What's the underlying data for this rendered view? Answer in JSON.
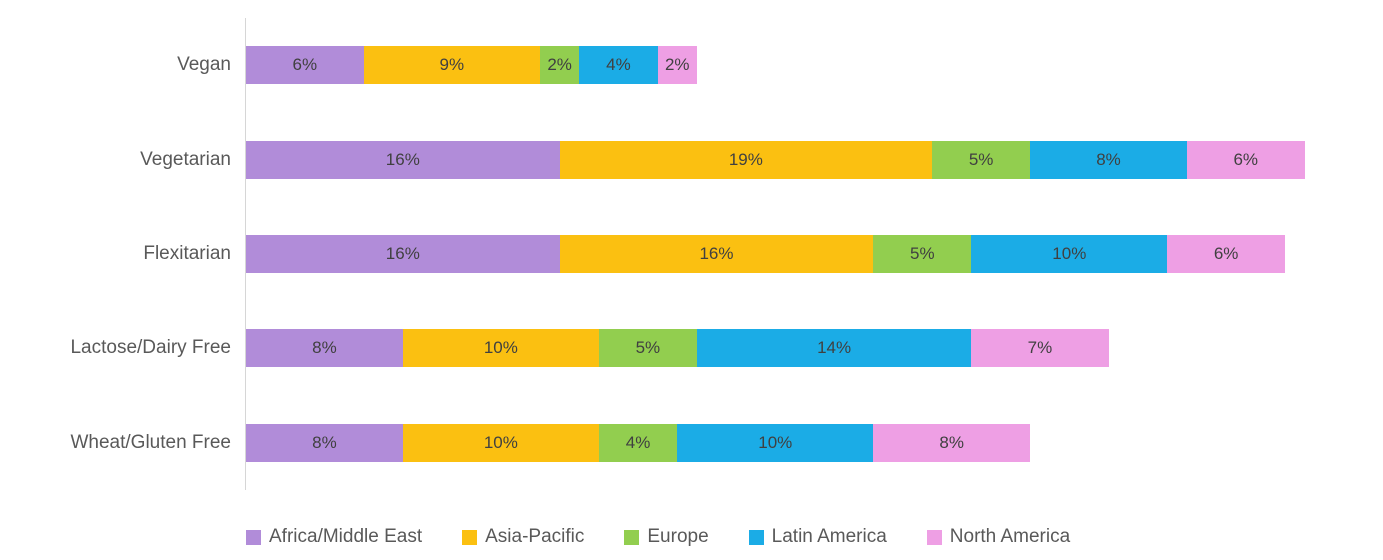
{
  "chart_data": {
    "type": "bar",
    "orientation": "horizontal",
    "stacked": true,
    "title": "",
    "xlabel": "",
    "ylabel": "",
    "categories": [
      "Vegan",
      "Vegetarian",
      "Flexitarian",
      "Lactose/Dairy Free",
      "Wheat/Gluten Free"
    ],
    "series": [
      {
        "name": "Africa/Middle East",
        "color": "#B18CD9",
        "values": [
          6,
          16,
          16,
          8,
          8
        ]
      },
      {
        "name": "Asia-Pacific",
        "color": "#FBC011",
        "values": [
          9,
          19,
          16,
          10,
          10
        ]
      },
      {
        "name": "Europe",
        "color": "#92CE4F",
        "values": [
          2,
          5,
          5,
          5,
          4
        ]
      },
      {
        "name": "Latin America",
        "color": "#1BACE6",
        "values": [
          4,
          8,
          10,
          14,
          10
        ]
      },
      {
        "name": "North America",
        "color": "#EE9FE4",
        "values": [
          2,
          6,
          6,
          7,
          8
        ]
      }
    ],
    "data_labels": true,
    "value_suffix": "%",
    "axis_range": [
      0,
      58
    ],
    "grid": false,
    "legend_position": "bottom"
  },
  "styles": {
    "background": "#FFFFFF",
    "category_label_color": "#595959",
    "data_label_color": "#404040",
    "legend_text_color": "#595959",
    "axis_line_color": "#D6D6D6"
  }
}
